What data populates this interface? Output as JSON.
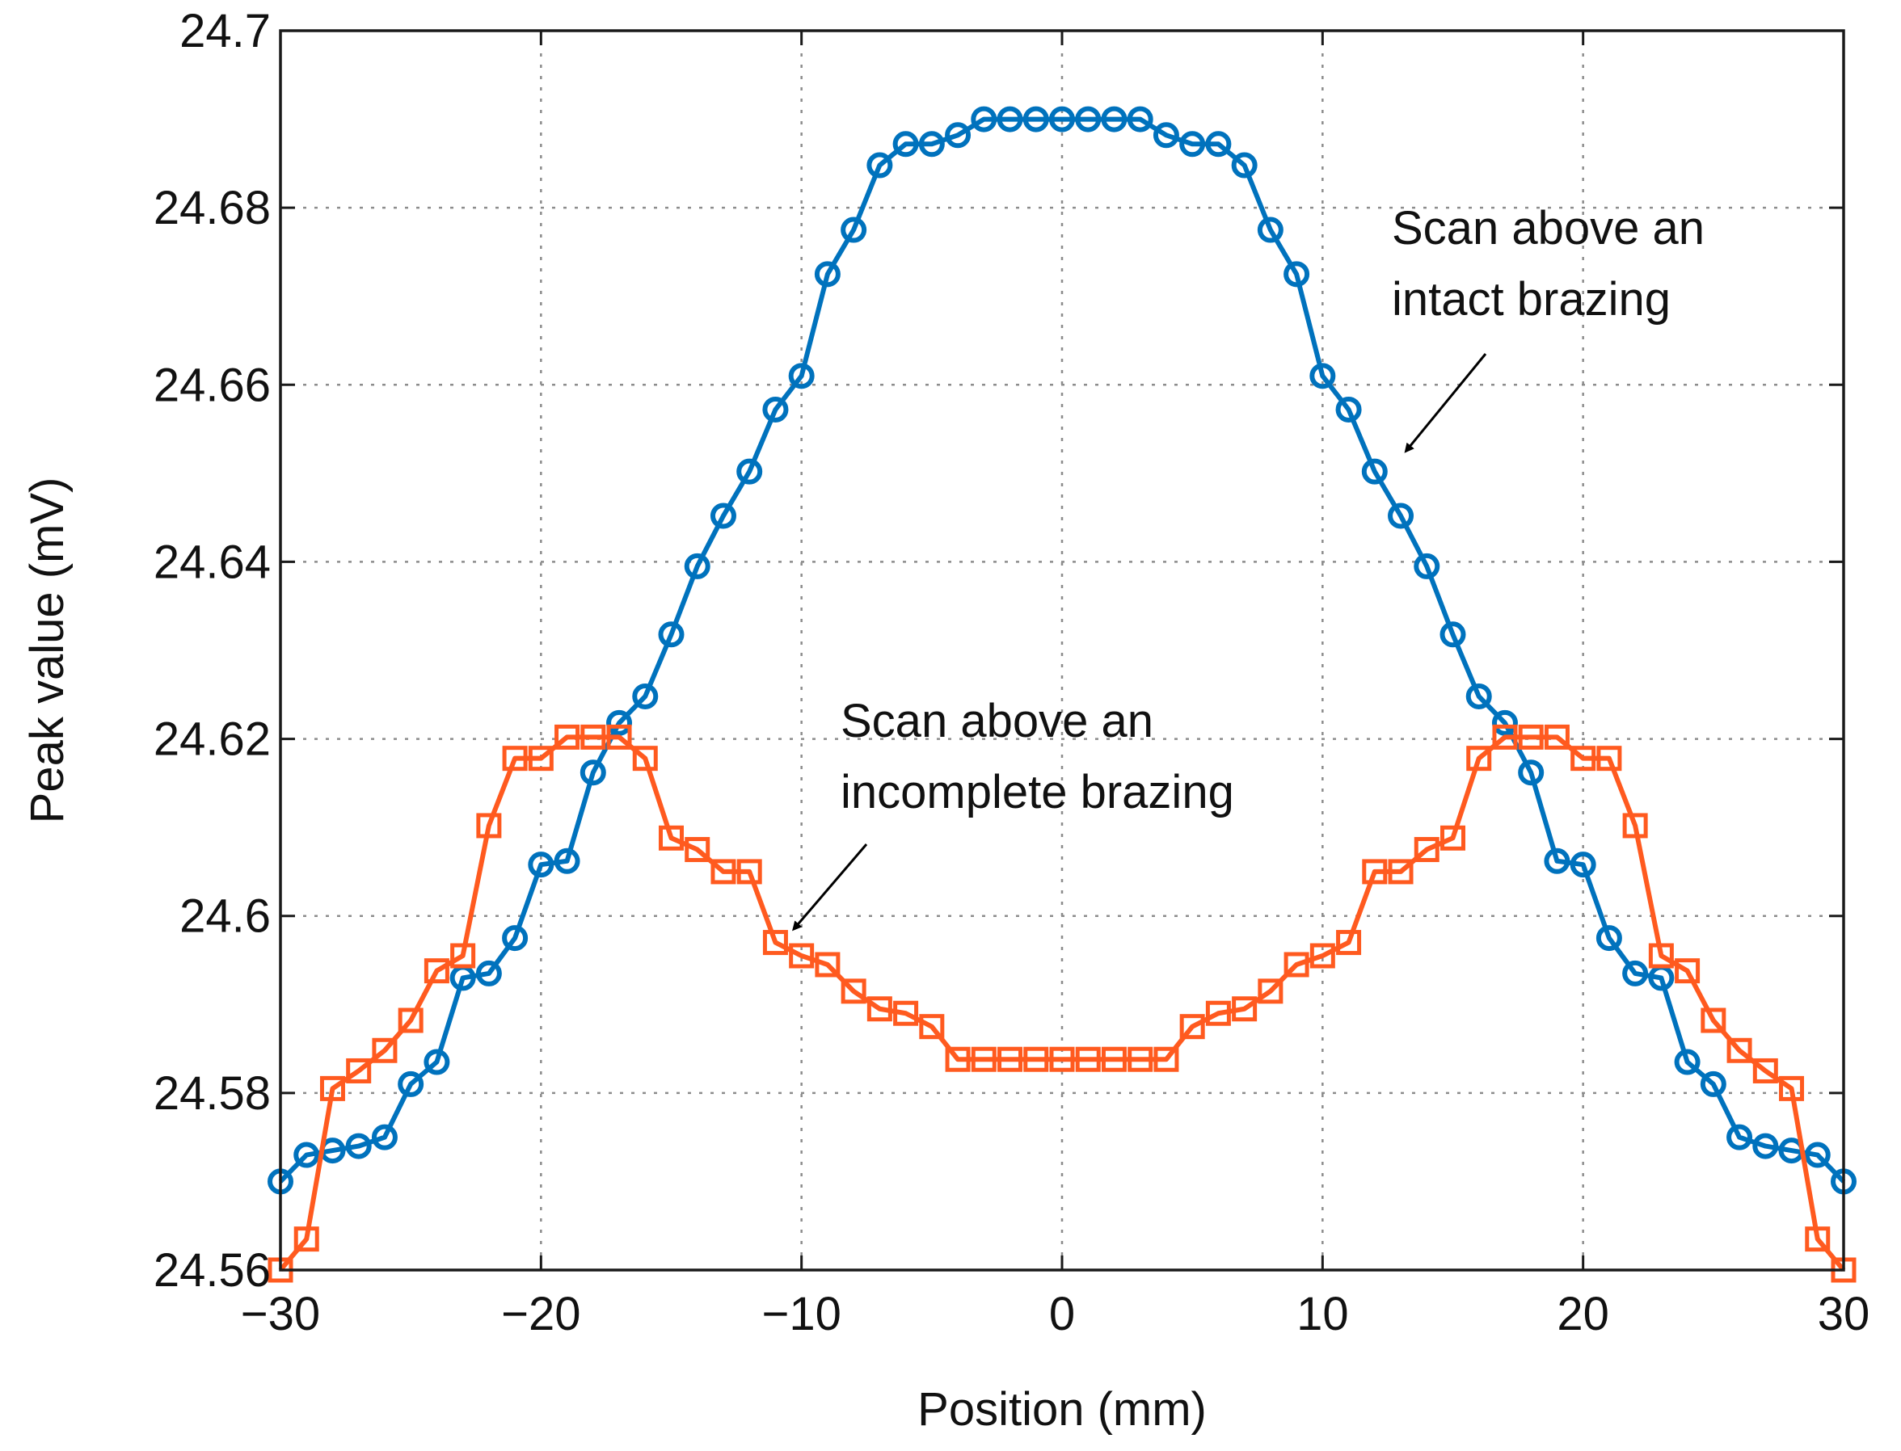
{
  "chart_data": {
    "type": "line",
    "title": "",
    "xlabel": "Position (mm)",
    "ylabel": "Peak value (mV)",
    "xlim": [
      -30,
      30
    ],
    "ylim": [
      24.56,
      24.7
    ],
    "grid": true,
    "x_ticks": [
      {
        "value": -30,
        "label": "−30"
      },
      {
        "value": -20,
        "label": "−20"
      },
      {
        "value": -10,
        "label": "−10"
      },
      {
        "value": 0,
        "label": "0"
      },
      {
        "value": 10,
        "label": "10"
      },
      {
        "value": 20,
        "label": "20"
      },
      {
        "value": 30,
        "label": "30"
      }
    ],
    "y_ticks": [
      {
        "value": 24.56,
        "label": "24.56"
      },
      {
        "value": 24.58,
        "label": "24.58"
      },
      {
        "value": 24.6,
        "label": "24.6"
      },
      {
        "value": 24.62,
        "label": "24.62"
      },
      {
        "value": 24.64,
        "label": "24.64"
      },
      {
        "value": 24.66,
        "label": "24.66"
      },
      {
        "value": 24.68,
        "label": "24.68"
      },
      {
        "value": 24.7,
        "label": "24.7"
      }
    ],
    "series": [
      {
        "name": "Scan above an intact brazing",
        "color": "#0072bd",
        "marker": "circle",
        "x": [
          -30,
          -29,
          -28,
          -27,
          -26,
          -25,
          -24,
          -23,
          -22,
          -21,
          -20,
          -19,
          -18,
          -17,
          -16,
          -15,
          -14,
          -13,
          -12,
          -11,
          -10,
          -9,
          -8,
          -7,
          -6,
          -5,
          -4,
          -3,
          -2,
          -1,
          0,
          1,
          2,
          3,
          4,
          5,
          6,
          7,
          8,
          9,
          10,
          11,
          12,
          13,
          14,
          15,
          16,
          17,
          18,
          19,
          20,
          21,
          22,
          23,
          24,
          25,
          26,
          27,
          28,
          29,
          30
        ],
        "values": [
          24.57,
          24.573,
          24.5735,
          24.574,
          24.575,
          24.581,
          24.5835,
          24.593,
          24.5935,
          24.5975,
          24.6058,
          24.6062,
          24.6162,
          24.6218,
          24.6248,
          24.6318,
          24.6395,
          24.6452,
          24.6502,
          24.6572,
          24.661,
          24.6725,
          24.6775,
          24.6848,
          24.6872,
          24.6872,
          24.6882,
          24.69,
          24.69,
          24.69,
          24.69,
          24.69,
          24.69,
          24.69,
          24.6882,
          24.6872,
          24.6872,
          24.6848,
          24.6775,
          24.6725,
          24.661,
          24.6572,
          24.6502,
          24.6452,
          24.6395,
          24.6318,
          24.6248,
          24.6218,
          24.6162,
          24.6062,
          24.6058,
          24.5975,
          24.5935,
          24.593,
          24.5835,
          24.581,
          24.575,
          24.574,
          24.5735,
          24.573,
          24.57
        ]
      },
      {
        "name": "Scan above an incomplete brazing",
        "color": "#ff5a1f",
        "marker": "square",
        "x": [
          -30,
          -29,
          -28,
          -27,
          -26,
          -25,
          -24,
          -23,
          -22,
          -21,
          -20,
          -19,
          -18,
          -17,
          -16,
          -15,
          -14,
          -13,
          -12,
          -11,
          -10,
          -9,
          -8,
          -7,
          -6,
          -5,
          -4,
          -3,
          -2,
          -1,
          0,
          1,
          2,
          3,
          4,
          5,
          6,
          7,
          8,
          9,
          10,
          11,
          12,
          13,
          14,
          15,
          16,
          17,
          18,
          19,
          20,
          21,
          22,
          23,
          24,
          25,
          26,
          27,
          28,
          29,
          30
        ],
        "values": [
          24.56,
          24.5635,
          24.5805,
          24.5825,
          24.5848,
          24.5882,
          24.5938,
          24.5955,
          24.6102,
          24.6178,
          24.6178,
          24.6202,
          24.6202,
          24.6202,
          24.6178,
          24.6088,
          24.6075,
          24.605,
          24.605,
          24.597,
          24.5955,
          24.5945,
          24.5915,
          24.5895,
          24.589,
          24.5875,
          24.5838,
          24.5838,
          24.5838,
          24.5838,
          24.5838,
          24.5838,
          24.5838,
          24.5838,
          24.5838,
          24.5875,
          24.589,
          24.5895,
          24.5915,
          24.5945,
          24.5955,
          24.597,
          24.605,
          24.605,
          24.6075,
          24.6088,
          24.6178,
          24.6202,
          24.6202,
          24.6202,
          24.6178,
          24.6178,
          24.6102,
          24.5955,
          24.5938,
          24.5882,
          24.5848,
          24.5825,
          24.5805,
          24.5635,
          24.56
        ]
      }
    ],
    "annotations": [
      {
        "name": "intact",
        "lines": [
          "Scan above an",
          "intact brazing"
        ],
        "arrow_to": [
          13.2,
          24.6525
        ]
      },
      {
        "name": "incomplete",
        "lines": [
          "Scan above an",
          "incomplete brazing"
        ],
        "arrow_to": [
          -10.3,
          24.5985
        ]
      }
    ]
  }
}
